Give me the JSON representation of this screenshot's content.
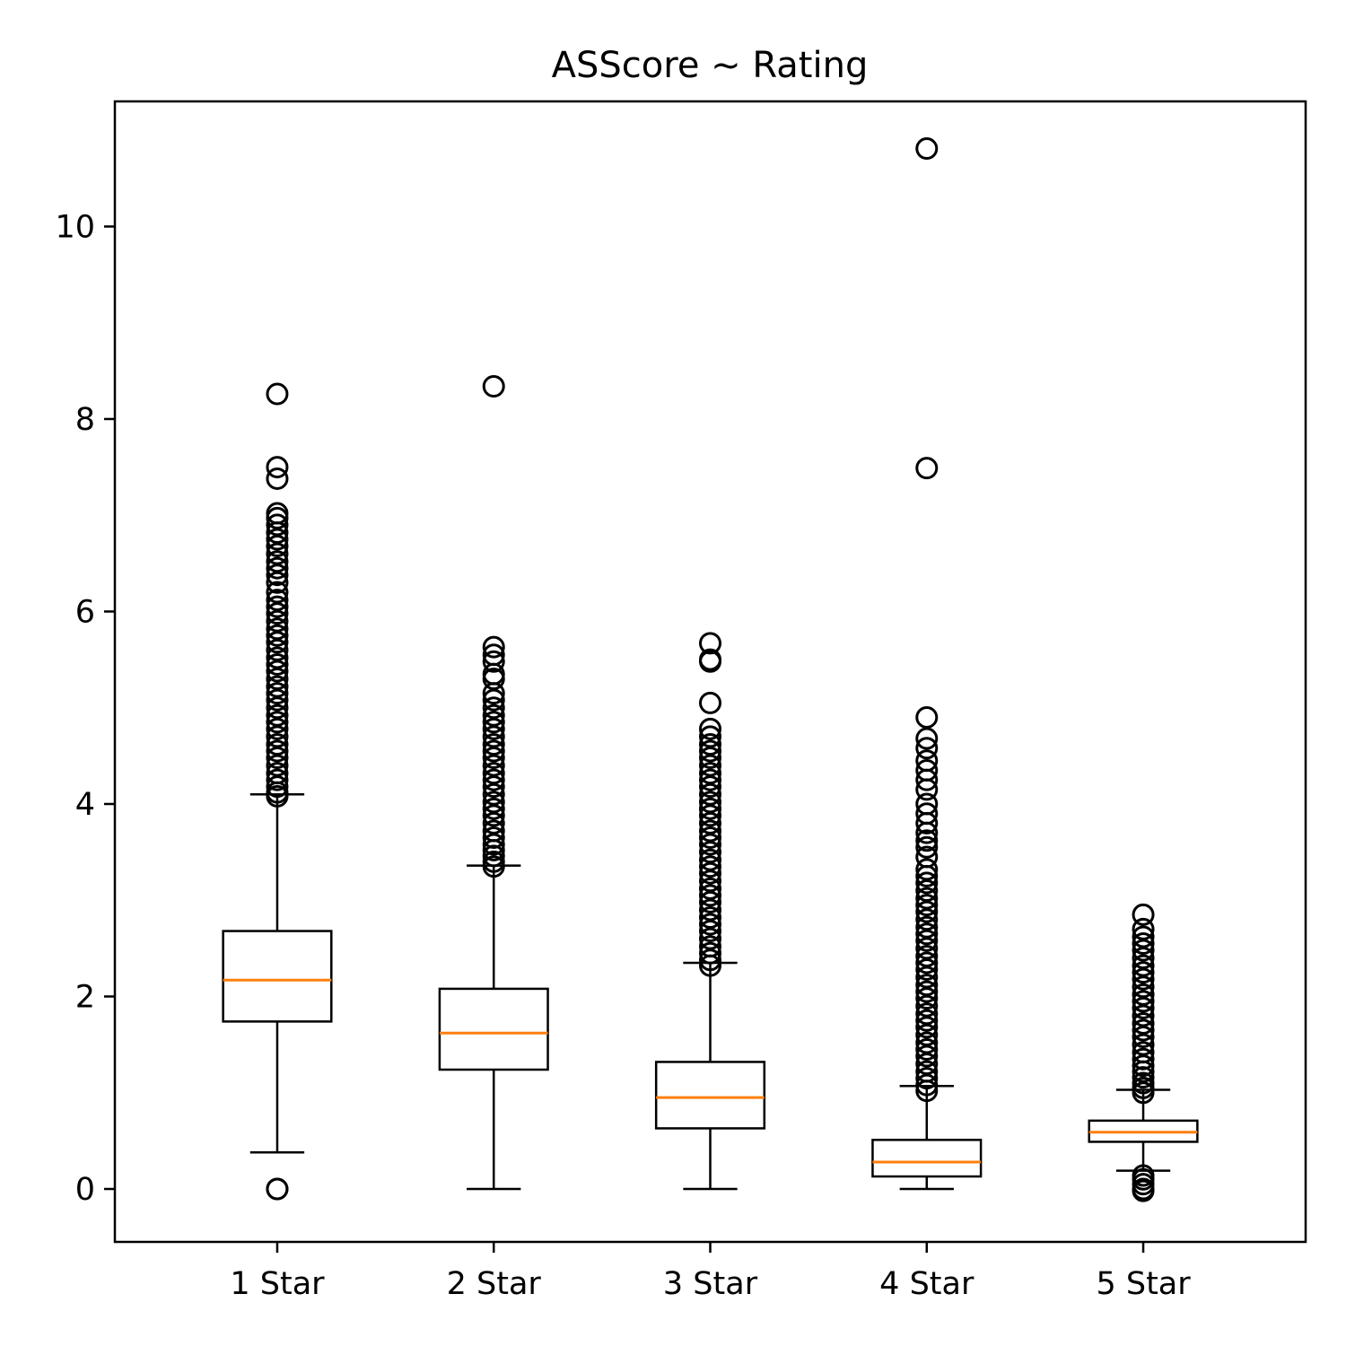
{
  "chart_data": {
    "type": "box",
    "title": "ASScore ~ Rating",
    "xlabel": "",
    "ylabel": "",
    "categories": [
      "1 Star",
      "2 Star",
      "3 Star",
      "4 Star",
      "5 Star"
    ],
    "ylim": [
      -0.55,
      11.3
    ],
    "yticks": [
      0,
      2,
      4,
      6,
      8,
      10
    ],
    "grid": false,
    "colors": {
      "box": "#000000",
      "median": "#ff7f0e",
      "flier": "#000000",
      "background": "#ffffff"
    },
    "boxes": [
      {
        "category": "1 Star",
        "whisker_low": 0.38,
        "q1": 1.74,
        "median": 2.17,
        "q3": 2.68,
        "whisker_high": 4.1,
        "fliers": [
          0.0,
          0.0,
          4.08,
          4.12,
          4.18,
          4.25,
          4.32,
          4.4,
          4.48,
          4.55,
          4.62,
          4.7,
          4.78,
          4.85,
          4.92,
          5.0,
          5.08,
          5.15,
          5.22,
          5.3,
          5.38,
          5.45,
          5.52,
          5.6,
          5.68,
          5.75,
          5.82,
          5.9,
          5.98,
          6.05,
          6.12,
          6.2,
          6.3,
          6.38,
          6.45,
          6.52,
          6.6,
          6.68,
          6.75,
          6.82,
          6.9,
          6.97,
          7.02,
          7.38,
          7.5,
          8.26
        ]
      },
      {
        "category": "2 Star",
        "whisker_low": 0.0,
        "q1": 1.24,
        "median": 1.62,
        "q3": 2.08,
        "whisker_high": 3.36,
        "fliers": [
          3.35,
          3.4,
          3.46,
          3.52,
          3.58,
          3.65,
          3.72,
          3.8,
          3.88,
          3.95,
          4.02,
          4.1,
          4.18,
          4.25,
          4.32,
          4.4,
          4.48,
          4.55,
          4.62,
          4.7,
          4.78,
          4.85,
          4.92,
          5.0,
          5.08,
          5.15,
          5.3,
          5.35,
          5.48,
          5.55,
          5.63,
          8.34
        ]
      },
      {
        "category": "3 Star",
        "whisker_low": 0.0,
        "q1": 0.63,
        "median": 0.95,
        "q3": 1.32,
        "whisker_high": 2.35,
        "fliers": [
          2.32,
          2.38,
          2.45,
          2.52,
          2.6,
          2.68,
          2.75,
          2.82,
          2.9,
          2.98,
          3.05,
          3.12,
          3.2,
          3.28,
          3.35,
          3.42,
          3.5,
          3.58,
          3.65,
          3.72,
          3.8,
          3.88,
          3.95,
          4.02,
          4.1,
          4.18,
          4.25,
          4.32,
          4.4,
          4.48,
          4.55,
          4.62,
          4.7,
          4.78,
          5.05,
          5.48,
          5.5,
          5.67
        ]
      },
      {
        "category": "4 Star",
        "whisker_low": 0.0,
        "q1": 0.13,
        "median": 0.28,
        "q3": 0.51,
        "whisker_high": 1.07,
        "fliers": [
          1.02,
          1.08,
          1.15,
          1.22,
          1.3,
          1.38,
          1.45,
          1.52,
          1.6,
          1.68,
          1.75,
          1.82,
          1.9,
          1.98,
          2.05,
          2.12,
          2.2,
          2.28,
          2.35,
          2.42,
          2.5,
          2.58,
          2.65,
          2.72,
          2.8,
          2.88,
          2.95,
          3.02,
          3.1,
          3.18,
          3.25,
          3.32,
          3.45,
          3.55,
          3.62,
          3.7,
          3.8,
          3.9,
          4.0,
          4.15,
          4.25,
          4.35,
          4.45,
          4.58,
          4.68,
          4.9,
          7.49,
          10.81
        ]
      },
      {
        "category": "5 Star",
        "whisker_low": 0.19,
        "q1": 0.49,
        "median": 0.59,
        "q3": 0.71,
        "whisker_high": 1.03,
        "fliers": [
          -0.02,
          0.0,
          0.05,
          0.1,
          0.14,
          1.0,
          1.05,
          1.1,
          1.16,
          1.22,
          1.28,
          1.35,
          1.42,
          1.5,
          1.58,
          1.65,
          1.72,
          1.8,
          1.88,
          1.95,
          2.02,
          2.1,
          2.18,
          2.25,
          2.32,
          2.4,
          2.48,
          2.55,
          2.62,
          2.7,
          2.85
        ]
      }
    ]
  }
}
